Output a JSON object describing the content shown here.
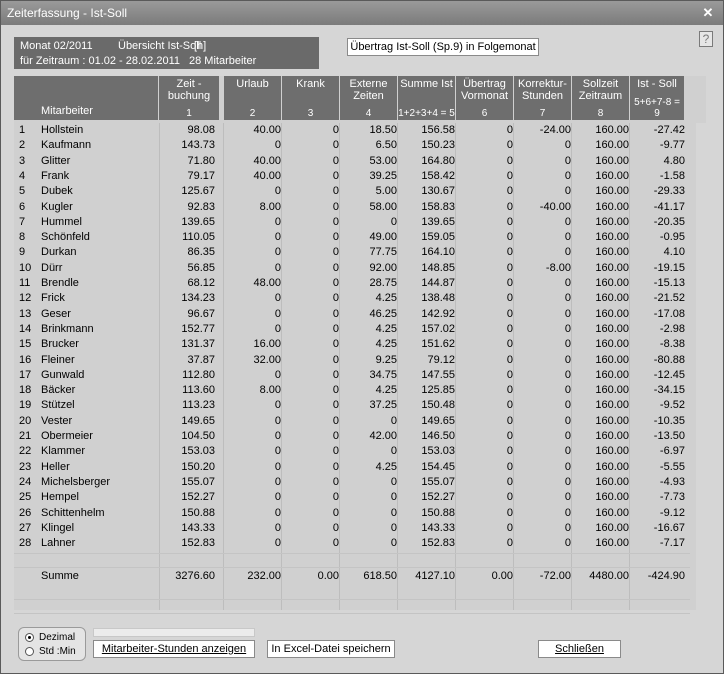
{
  "window": {
    "title": "Zeiterfassung  -  Ist-Soll",
    "close_glyph": "✕",
    "help_glyph": "?"
  },
  "info": {
    "line1_left": "Monat 02/2011",
    "line1_mid": "Übersicht Ist-Soll",
    "line1_right": "[h]",
    "line2_left": "für Zeitraum : 01.02 - 28.02.2011",
    "line2_right": "28 Mitarbeiter"
  },
  "transfer_button": "Übertrag Ist-Soll (Sp.9) in Folgemonat",
  "columns": [
    {
      "title": "Mitarbeiter",
      "num": ""
    },
    {
      "title": "Zeit -\nbuchung",
      "num": "1"
    },
    {
      "title": "Urlaub",
      "num": "2"
    },
    {
      "title": "Krank",
      "num": "3"
    },
    {
      "title": "Externe\nZeiten",
      "num": "4"
    },
    {
      "title": "Summe Ist",
      "num": "1+2+3+4 = 5"
    },
    {
      "title": "Übertrag\nVormonat",
      "num": "6"
    },
    {
      "title": "Korrektur-\nStunden",
      "num": "7"
    },
    {
      "title": "Sollzeit\nZeitraum",
      "num": "8"
    },
    {
      "title": "Ist - Soll",
      "num": "5+6+7-8 = 9"
    }
  ],
  "rows": [
    [
      "1",
      "Hollstein",
      "98.08",
      "40.00",
      "0",
      "18.50",
      "156.58",
      "0",
      "-24.00",
      "160.00",
      "-27.42"
    ],
    [
      "2",
      "Kaufmann",
      "143.73",
      "0",
      "0",
      "6.50",
      "150.23",
      "0",
      "0",
      "160.00",
      "-9.77"
    ],
    [
      "3",
      "Glitter",
      "71.80",
      "40.00",
      "0",
      "53.00",
      "164.80",
      "0",
      "0",
      "160.00",
      "4.80"
    ],
    [
      "4",
      "Frank",
      "79.17",
      "40.00",
      "0",
      "39.25",
      "158.42",
      "0",
      "0",
      "160.00",
      "-1.58"
    ],
    [
      "5",
      "Dubek",
      "125.67",
      "0",
      "0",
      "5.00",
      "130.67",
      "0",
      "0",
      "160.00",
      "-29.33"
    ],
    [
      "6",
      "Kugler",
      "92.83",
      "8.00",
      "0",
      "58.00",
      "158.83",
      "0",
      "-40.00",
      "160.00",
      "-41.17"
    ],
    [
      "7",
      "Hummel",
      "139.65",
      "0",
      "0",
      "0",
      "139.65",
      "0",
      "0",
      "160.00",
      "-20.35"
    ],
    [
      "8",
      "Schönfeld",
      "110.05",
      "0",
      "0",
      "49.00",
      "159.05",
      "0",
      "0",
      "160.00",
      "-0.95"
    ],
    [
      "9",
      "Durkan",
      "86.35",
      "0",
      "0",
      "77.75",
      "164.10",
      "0",
      "0",
      "160.00",
      "4.10"
    ],
    [
      "10",
      "Dürr",
      "56.85",
      "0",
      "0",
      "92.00",
      "148.85",
      "0",
      "-8.00",
      "160.00",
      "-19.15"
    ],
    [
      "11",
      "Brendle",
      "68.12",
      "48.00",
      "0",
      "28.75",
      "144.87",
      "0",
      "0",
      "160.00",
      "-15.13"
    ],
    [
      "12",
      "Frick",
      "134.23",
      "0",
      "0",
      "4.25",
      "138.48",
      "0",
      "0",
      "160.00",
      "-21.52"
    ],
    [
      "13",
      "Geser",
      "96.67",
      "0",
      "0",
      "46.25",
      "142.92",
      "0",
      "0",
      "160.00",
      "-17.08"
    ],
    [
      "14",
      "Brinkmann",
      "152.77",
      "0",
      "0",
      "4.25",
      "157.02",
      "0",
      "0",
      "160.00",
      "-2.98"
    ],
    [
      "15",
      "Brucker",
      "131.37",
      "16.00",
      "0",
      "4.25",
      "151.62",
      "0",
      "0",
      "160.00",
      "-8.38"
    ],
    [
      "16",
      "Fleiner",
      "37.87",
      "32.00",
      "0",
      "9.25",
      "79.12",
      "0",
      "0",
      "160.00",
      "-80.88"
    ],
    [
      "17",
      "Gunwald",
      "112.80",
      "0",
      "0",
      "34.75",
      "147.55",
      "0",
      "0",
      "160.00",
      "-12.45"
    ],
    [
      "18",
      "Bäcker",
      "113.60",
      "8.00",
      "0",
      "4.25",
      "125.85",
      "0",
      "0",
      "160.00",
      "-34.15"
    ],
    [
      "19",
      "Stützel",
      "113.23",
      "0",
      "0",
      "37.25",
      "150.48",
      "0",
      "0",
      "160.00",
      "-9.52"
    ],
    [
      "20",
      "Vester",
      "149.65",
      "0",
      "0",
      "0",
      "149.65",
      "0",
      "0",
      "160.00",
      "-10.35"
    ],
    [
      "21",
      "Obermeier",
      "104.50",
      "0",
      "0",
      "42.00",
      "146.50",
      "0",
      "0",
      "160.00",
      "-13.50"
    ],
    [
      "22",
      "Klammer",
      "153.03",
      "0",
      "0",
      "0",
      "153.03",
      "0",
      "0",
      "160.00",
      "-6.97"
    ],
    [
      "23",
      "Heller",
      "150.20",
      "0",
      "0",
      "4.25",
      "154.45",
      "0",
      "0",
      "160.00",
      "-5.55"
    ],
    [
      "24",
      "Michelsberger",
      "155.07",
      "0",
      "0",
      "0",
      "155.07",
      "0",
      "0",
      "160.00",
      "-4.93"
    ],
    [
      "25",
      "Hempel",
      "152.27",
      "0",
      "0",
      "0",
      "152.27",
      "0",
      "0",
      "160.00",
      "-7.73"
    ],
    [
      "26",
      "Schittenhelm",
      "150.88",
      "0",
      "0",
      "0",
      "150.88",
      "0",
      "0",
      "160.00",
      "-9.12"
    ],
    [
      "27",
      "Klingel",
      "143.33",
      "0",
      "0",
      "0",
      "143.33",
      "0",
      "0",
      "160.00",
      "-16.67"
    ],
    [
      "28",
      "Lahner",
      "152.83",
      "0",
      "0",
      "0",
      "152.83",
      "0",
      "0",
      "160.00",
      "-7.17"
    ]
  ],
  "sum_row": [
    "",
    "Summe",
    "3276.60",
    "232.00",
    "0.00",
    "618.50",
    "4127.10",
    "0.00",
    "-72.00",
    "4480.00",
    "-424.90"
  ],
  "mode": {
    "option1": "Dezimal",
    "option2": "Std :Min",
    "selected": "Dezimal"
  },
  "buttons": {
    "show_hours": "Mitarbeiter-Stunden anzeigen",
    "excel": "In Excel-Datei speichern",
    "close": "Schließen"
  }
}
